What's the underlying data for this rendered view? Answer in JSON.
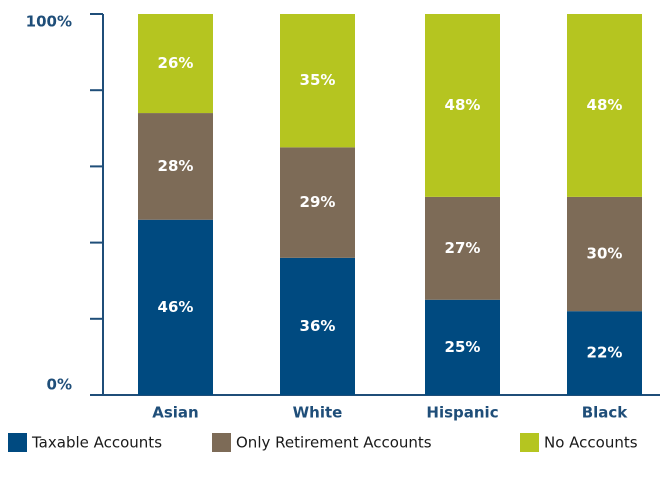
{
  "chart_data": {
    "type": "stacked_bar",
    "categories": [
      "Asian",
      "White",
      "Hispanic",
      "Black"
    ],
    "series": [
      {
        "name": "Taxable Accounts",
        "color": "#004a80",
        "values": [
          46,
          36,
          25,
          22
        ],
        "value_labels": [
          "46%",
          "36%",
          "25%",
          "22%"
        ]
      },
      {
        "name": "Only Retirement Accounts",
        "color": "#7d6b57",
        "values": [
          28,
          29,
          27,
          30
        ],
        "value_labels": [
          "28%",
          "29%",
          "27%",
          "30%"
        ]
      },
      {
        "name": "No Accounts",
        "color": "#b5c520",
        "values": [
          26,
          35,
          48,
          48
        ],
        "value_labels": [
          "26%",
          "35%",
          "48%",
          "48%"
        ]
      }
    ],
    "ylim": [
      0,
      100
    ],
    "yticks": [
      {
        "value": 0,
        "label": "0%"
      },
      {
        "value": 100,
        "label": "100%"
      }
    ],
    "minor_yticks": [
      20,
      40,
      60,
      80
    ],
    "axis_color": "#1f4e79",
    "legend": "bottom"
  }
}
